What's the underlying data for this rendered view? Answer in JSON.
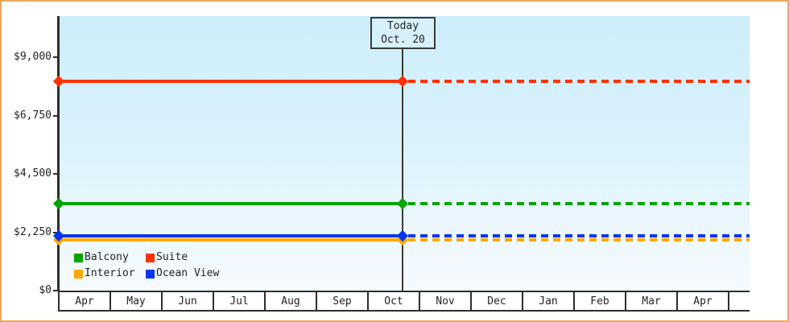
{
  "window": {
    "background": "#ffffff",
    "border_color": "#e9a75c"
  },
  "chart_data": {
    "type": "line",
    "title": "",
    "xlabel": "",
    "ylabel": "",
    "grid": false,
    "plot_background_gradient": [
      "#cdeefb",
      "#f5fbfe"
    ],
    "x_axis": {
      "months": [
        "Apr",
        "May",
        "Jun",
        "Jul",
        "Aug",
        "Sep",
        "Oct",
        "Nov",
        "Dec",
        "Jan",
        "Feb",
        "Mar",
        "Apr"
      ]
    },
    "y_axis": {
      "ticks": [
        {
          "label": "$9,000",
          "value": 9000
        },
        {
          "label": "$6,750",
          "value": 6750
        },
        {
          "label": "$4,500",
          "value": 4500
        },
        {
          "label": "$2,250",
          "value": 2250
        },
        {
          "label": "$0",
          "value": 0
        }
      ],
      "visible_range": [
        0,
        10500
      ]
    },
    "today": {
      "line1": "Today",
      "line2": "Oct. 20",
      "month": "Oct",
      "day": 20
    },
    "series": [
      {
        "name": "Suite",
        "color": "#ff3200",
        "value_estimate": 8070,
        "style": "solid-before-today-dashed-after"
      },
      {
        "name": "Balcony",
        "color": "#04a304",
        "value_estimate": 3350,
        "style": "solid-before-today-dashed-after"
      },
      {
        "name": "Interior",
        "color": "#ffa805",
        "value_estimate": 1950,
        "style": "solid-before-today-dashed-after"
      },
      {
        "name": "Ocean View",
        "color": "#0435f0",
        "value_estimate": 2110,
        "style": "solid-before-today-dashed-after"
      }
    ],
    "legend": {
      "position": "bottom-left",
      "items": [
        {
          "name": "Balcony",
          "color": "#04a304"
        },
        {
          "name": "Suite",
          "color": "#ff3200"
        },
        {
          "name": "Interior",
          "color": "#ffa805"
        },
        {
          "name": "Ocean View",
          "color": "#0435f0"
        }
      ]
    }
  }
}
